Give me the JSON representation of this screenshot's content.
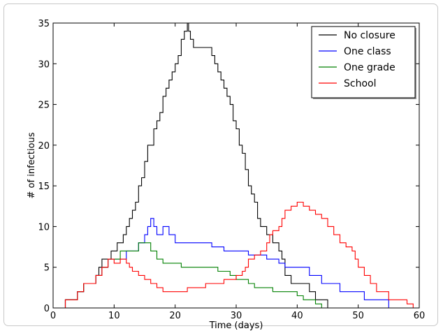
{
  "chart_data": {
    "type": "line",
    "step": true,
    "xlabel": "Time (days)",
    "ylabel": "# of infectious",
    "xlim": [
      0,
      60
    ],
    "ylim": [
      0,
      35
    ],
    "x_ticks": [
      0,
      10,
      20,
      30,
      40,
      50,
      60
    ],
    "y_ticks": [
      0,
      5,
      10,
      15,
      20,
      25,
      30,
      35
    ],
    "grid": false,
    "legend_position": "top-right",
    "series": [
      {
        "name": "No closure",
        "color": "#000000",
        "points": [
          [
            0,
            0
          ],
          [
            2,
            0
          ],
          [
            2,
            1
          ],
          [
            4,
            1
          ],
          [
            4,
            2
          ],
          [
            5,
            2
          ],
          [
            5,
            3
          ],
          [
            7,
            3
          ],
          [
            7,
            4
          ],
          [
            7.5,
            4
          ],
          [
            7.5,
            5
          ],
          [
            8,
            5
          ],
          [
            8,
            6
          ],
          [
            9.5,
            6
          ],
          [
            9.5,
            7
          ],
          [
            10.5,
            7
          ],
          [
            10.5,
            8
          ],
          [
            11.5,
            8
          ],
          [
            11.5,
            9
          ],
          [
            12,
            9
          ],
          [
            12,
            10
          ],
          [
            12.5,
            10
          ],
          [
            12.5,
            11
          ],
          [
            13,
            11
          ],
          [
            13,
            12
          ],
          [
            13.5,
            12
          ],
          [
            13.5,
            13
          ],
          [
            14,
            13
          ],
          [
            14,
            15
          ],
          [
            14.5,
            15
          ],
          [
            14.5,
            16
          ],
          [
            15,
            16
          ],
          [
            15,
            18
          ],
          [
            15.5,
            18
          ],
          [
            15.5,
            20
          ],
          [
            16.5,
            20
          ],
          [
            16.5,
            22
          ],
          [
            17,
            22
          ],
          [
            17,
            23
          ],
          [
            17.5,
            23
          ],
          [
            17.5,
            24
          ],
          [
            18,
            24
          ],
          [
            18,
            26
          ],
          [
            18.5,
            26
          ],
          [
            18.5,
            27
          ],
          [
            19,
            27
          ],
          [
            19,
            28
          ],
          [
            19.5,
            28
          ],
          [
            19.5,
            29
          ],
          [
            20,
            29
          ],
          [
            20,
            30
          ],
          [
            20.5,
            30
          ],
          [
            20.5,
            31
          ],
          [
            21,
            31
          ],
          [
            21,
            33
          ],
          [
            21.5,
            33
          ],
          [
            21.5,
            34
          ],
          [
            22,
            34
          ],
          [
            22,
            35
          ],
          [
            22.2,
            35
          ],
          [
            22.2,
            34
          ],
          [
            22.5,
            34
          ],
          [
            22.5,
            33
          ],
          [
            23,
            33
          ],
          [
            23,
            32
          ],
          [
            26,
            32
          ],
          [
            26,
            31
          ],
          [
            26.5,
            31
          ],
          [
            26.5,
            30
          ],
          [
            27,
            30
          ],
          [
            27,
            29
          ],
          [
            27.5,
            29
          ],
          [
            27.5,
            28
          ],
          [
            28,
            28
          ],
          [
            28,
            27
          ],
          [
            28.5,
            27
          ],
          [
            28.5,
            26
          ],
          [
            29,
            26
          ],
          [
            29,
            25
          ],
          [
            29.5,
            25
          ],
          [
            29.5,
            23
          ],
          [
            30,
            23
          ],
          [
            30,
            22
          ],
          [
            30.5,
            22
          ],
          [
            30.5,
            20
          ],
          [
            31,
            20
          ],
          [
            31,
            19
          ],
          [
            31.5,
            19
          ],
          [
            31.5,
            17
          ],
          [
            32,
            17
          ],
          [
            32,
            15
          ],
          [
            32.5,
            15
          ],
          [
            32.5,
            14
          ],
          [
            33,
            14
          ],
          [
            33,
            13
          ],
          [
            33.5,
            13
          ],
          [
            33.5,
            11
          ],
          [
            34,
            11
          ],
          [
            34,
            10
          ],
          [
            35,
            10
          ],
          [
            35,
            9
          ],
          [
            36,
            9
          ],
          [
            36,
            8
          ],
          [
            37,
            8
          ],
          [
            37,
            7
          ],
          [
            37.5,
            7
          ],
          [
            37.5,
            6
          ],
          [
            38,
            6
          ],
          [
            38,
            4
          ],
          [
            39,
            4
          ],
          [
            39,
            3
          ],
          [
            42,
            3
          ],
          [
            42,
            2
          ],
          [
            43,
            2
          ],
          [
            43,
            1
          ],
          [
            45,
            1
          ],
          [
            45,
            0
          ],
          [
            60,
            0
          ]
        ]
      },
      {
        "name": "One class",
        "color": "#0000ff",
        "points": [
          [
            0,
            0
          ],
          [
            2,
            0
          ],
          [
            2,
            1
          ],
          [
            4,
            1
          ],
          [
            4,
            2
          ],
          [
            5,
            2
          ],
          [
            5,
            3
          ],
          [
            7,
            3
          ],
          [
            7,
            4
          ],
          [
            8,
            4
          ],
          [
            8,
            5
          ],
          [
            9,
            5
          ],
          [
            9,
            6
          ],
          [
            12,
            6
          ],
          [
            12,
            7
          ],
          [
            14,
            7
          ],
          [
            14,
            8
          ],
          [
            15,
            8
          ],
          [
            15,
            9
          ],
          [
            15.5,
            9
          ],
          [
            15.5,
            10
          ],
          [
            16,
            10
          ],
          [
            16,
            11
          ],
          [
            16.5,
            11
          ],
          [
            16.5,
            10
          ],
          [
            17,
            10
          ],
          [
            17,
            9
          ],
          [
            18,
            9
          ],
          [
            18,
            10
          ],
          [
            19,
            10
          ],
          [
            19,
            9
          ],
          [
            20,
            9
          ],
          [
            20,
            8
          ],
          [
            26,
            8
          ],
          [
            26,
            7.5
          ],
          [
            28,
            7.5
          ],
          [
            28,
            7
          ],
          [
            32,
            7
          ],
          [
            32,
            6.5
          ],
          [
            35,
            6.5
          ],
          [
            35,
            6
          ],
          [
            37,
            6
          ],
          [
            37,
            5.5
          ],
          [
            38,
            5.5
          ],
          [
            38,
            5
          ],
          [
            42,
            5
          ],
          [
            42,
            4
          ],
          [
            44,
            4
          ],
          [
            44,
            3
          ],
          [
            47,
            3
          ],
          [
            47,
            2
          ],
          [
            51,
            2
          ],
          [
            51,
            1
          ],
          [
            55,
            1
          ],
          [
            55,
            0
          ],
          [
            60,
            0
          ]
        ]
      },
      {
        "name": "One grade",
        "color": "#008000",
        "points": [
          [
            0,
            0
          ],
          [
            2,
            0
          ],
          [
            2,
            1
          ],
          [
            4,
            1
          ],
          [
            4,
            2
          ],
          [
            5,
            2
          ],
          [
            5,
            3
          ],
          [
            7,
            3
          ],
          [
            7,
            4
          ],
          [
            8,
            4
          ],
          [
            8,
            5
          ],
          [
            9,
            5
          ],
          [
            9,
            6
          ],
          [
            11,
            6
          ],
          [
            11,
            7
          ],
          [
            14,
            7
          ],
          [
            14,
            8
          ],
          [
            16,
            8
          ],
          [
            16,
            7
          ],
          [
            17,
            7
          ],
          [
            17,
            6
          ],
          [
            18,
            6
          ],
          [
            18,
            5.5
          ],
          [
            21,
            5.5
          ],
          [
            21,
            5
          ],
          [
            27,
            5
          ],
          [
            27,
            4.5
          ],
          [
            29,
            4.5
          ],
          [
            29,
            4
          ],
          [
            30,
            4
          ],
          [
            30,
            3.5
          ],
          [
            32,
            3.5
          ],
          [
            32,
            3
          ],
          [
            33,
            3
          ],
          [
            33,
            2.5
          ],
          [
            36,
            2.5
          ],
          [
            36,
            2
          ],
          [
            40,
            2
          ],
          [
            40,
            1.5
          ],
          [
            41,
            1.5
          ],
          [
            41,
            1
          ],
          [
            43,
            1
          ],
          [
            43,
            0.5
          ],
          [
            44,
            0.5
          ],
          [
            44,
            0
          ],
          [
            60,
            0
          ]
        ]
      },
      {
        "name": "School",
        "color": "#ff0000",
        "points": [
          [
            0,
            0
          ],
          [
            2,
            0
          ],
          [
            2,
            1
          ],
          [
            4,
            1
          ],
          [
            4,
            2
          ],
          [
            5,
            2
          ],
          [
            5,
            3
          ],
          [
            7,
            3
          ],
          [
            7,
            4
          ],
          [
            8,
            4
          ],
          [
            8,
            5
          ],
          [
            9,
            5
          ],
          [
            9,
            6
          ],
          [
            10,
            6
          ],
          [
            10,
            5.5
          ],
          [
            11,
            5.5
          ],
          [
            11,
            6
          ],
          [
            12,
            6
          ],
          [
            12,
            5.5
          ],
          [
            12.5,
            5.5
          ],
          [
            12.5,
            5
          ],
          [
            13,
            5
          ],
          [
            13,
            4.5
          ],
          [
            14,
            4.5
          ],
          [
            14,
            4
          ],
          [
            15,
            4
          ],
          [
            15,
            3.5
          ],
          [
            16,
            3.5
          ],
          [
            16,
            3
          ],
          [
            17,
            3
          ],
          [
            17,
            2.5
          ],
          [
            18,
            2.5
          ],
          [
            18,
            2
          ],
          [
            22,
            2
          ],
          [
            22,
            2.5
          ],
          [
            25,
            2.5
          ],
          [
            25,
            3
          ],
          [
            28,
            3
          ],
          [
            28,
            3.5
          ],
          [
            30,
            3.5
          ],
          [
            30,
            4
          ],
          [
            31,
            4
          ],
          [
            31,
            4.5
          ],
          [
            31.5,
            4.5
          ],
          [
            31.5,
            5
          ],
          [
            32,
            5
          ],
          [
            32,
            6
          ],
          [
            33,
            6
          ],
          [
            33,
            6.5
          ],
          [
            34,
            6.5
          ],
          [
            34,
            7
          ],
          [
            35,
            7
          ],
          [
            35,
            8
          ],
          [
            35.5,
            8
          ],
          [
            35.5,
            9
          ],
          [
            36,
            9
          ],
          [
            36,
            9.5
          ],
          [
            37,
            9.5
          ],
          [
            37,
            10
          ],
          [
            37.5,
            10
          ],
          [
            37.5,
            11
          ],
          [
            38,
            11
          ],
          [
            38,
            12
          ],
          [
            39,
            12
          ],
          [
            39,
            12.5
          ],
          [
            40,
            12.5
          ],
          [
            40,
            13
          ],
          [
            41,
            13
          ],
          [
            41,
            12.5
          ],
          [
            42,
            12.5
          ],
          [
            42,
            12
          ],
          [
            43,
            12
          ],
          [
            43,
            11.5
          ],
          [
            44,
            11.5
          ],
          [
            44,
            11
          ],
          [
            45,
            11
          ],
          [
            45,
            10
          ],
          [
            46,
            10
          ],
          [
            46,
            9
          ],
          [
            47,
            9
          ],
          [
            47,
            8
          ],
          [
            48,
            8
          ],
          [
            48,
            7.5
          ],
          [
            49,
            7.5
          ],
          [
            49,
            7
          ],
          [
            49.5,
            7
          ],
          [
            49.5,
            6
          ],
          [
            50,
            6
          ],
          [
            50,
            5
          ],
          [
            51,
            5
          ],
          [
            51,
            4
          ],
          [
            52,
            4
          ],
          [
            52,
            3
          ],
          [
            53,
            3
          ],
          [
            53,
            2
          ],
          [
            55,
            2
          ],
          [
            55,
            1
          ],
          [
            58,
            1
          ],
          [
            58,
            0.5
          ],
          [
            59,
            0.5
          ],
          [
            59,
            0
          ],
          [
            60,
            0
          ]
        ]
      }
    ]
  }
}
